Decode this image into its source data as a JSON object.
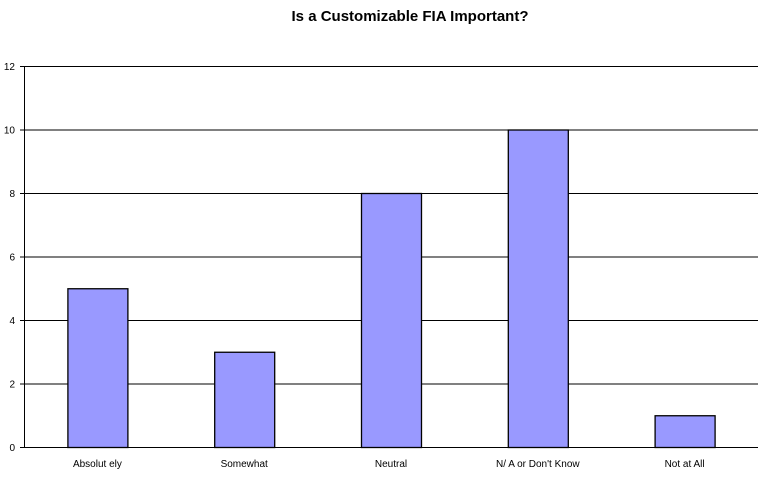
{
  "chart_data": {
    "type": "bar",
    "title": "Is a Customizable FIA Important?",
    "xlabel": "",
    "ylabel": "",
    "categories": [
      "Absolutely",
      "Somewhat",
      "Neutral",
      "N/A or Don't Know",
      "Not at All"
    ],
    "category_labels": [
      "Absolut ely",
      "Somewhat",
      "Neutral",
      "N/ A or Don't Know",
      "Not at All"
    ],
    "values": [
      5,
      3,
      8,
      10,
      1
    ],
    "ylim": [
      0,
      12
    ],
    "yticks": [
      0,
      2,
      4,
      6,
      8,
      10,
      12
    ],
    "grid": true,
    "legend": "none",
    "colors": {
      "bar_fill": "#9999ff",
      "bar_stroke": "#000000",
      "gridline": "#000000",
      "background": "#ffffff"
    }
  }
}
